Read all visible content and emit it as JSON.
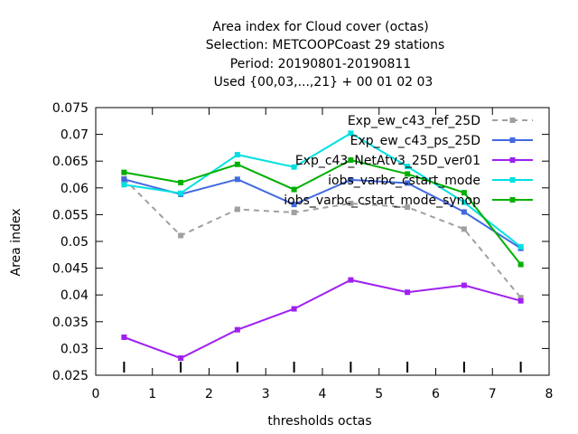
{
  "chart_data": {
    "type": "line",
    "title_lines": [
      "Area index  for Cloud cover (octas)",
      "Selection: METCOOPCoast     29 stations",
      "Period: 20190801-20190811",
      "Used {00,03,...,21} + 00 01 02 03"
    ],
    "xlabel": "thresholds octas",
    "ylabel": "Area index",
    "xlim": [
      0,
      8
    ],
    "ylim": [
      0.025,
      0.075
    ],
    "xticks": [
      "0",
      "1",
      "2",
      "3",
      "4",
      "5",
      "6",
      "7",
      "8"
    ],
    "yticks": [
      "0.025",
      "0.03",
      "0.035",
      "0.04",
      "0.045",
      "0.05",
      "0.055",
      "0.06",
      "0.065",
      "0.07",
      "0.075"
    ],
    "x": [
      0.5,
      1.5,
      2.5,
      3.5,
      4.5,
      5.5,
      6.5,
      7.5
    ],
    "grid": false,
    "legend_position": "top-right",
    "series": [
      {
        "name": "Exp_ew_c43_ref_25D",
        "color": "#a0a0a0",
        "dashed": true,
        "values": [
          0.0617,
          0.0511,
          0.056,
          0.0554,
          0.0571,
          0.0564,
          0.0523,
          0.0395
        ]
      },
      {
        "name": "Exp_ew_c43_ps_25D",
        "color": "#4169e1",
        "dashed": false,
        "values": [
          0.0616,
          0.0588,
          0.0616,
          0.0569,
          0.0615,
          0.0609,
          0.0555,
          0.0487
        ]
      },
      {
        "name": "Exp_c43_NetAtv3_25D_ver01",
        "color": "#a020f0",
        "dashed": false,
        "values": [
          0.0321,
          0.0282,
          0.0335,
          0.0374,
          0.0428,
          0.0405,
          0.0418,
          0.0389
        ]
      },
      {
        "name": "iobs_varbc_cstart_mode",
        "color": "#00e0e0",
        "dashed": false,
        "values": [
          0.0606,
          0.059,
          0.0662,
          0.0639,
          0.0702,
          0.064,
          0.0573,
          0.049
        ]
      },
      {
        "name": "iobs_varbc_cstart_mode_synop",
        "color": "#00b000",
        "dashed": false,
        "values": [
          0.0629,
          0.061,
          0.0644,
          0.0597,
          0.0652,
          0.0626,
          0.0591,
          0.0457
        ]
      }
    ]
  }
}
